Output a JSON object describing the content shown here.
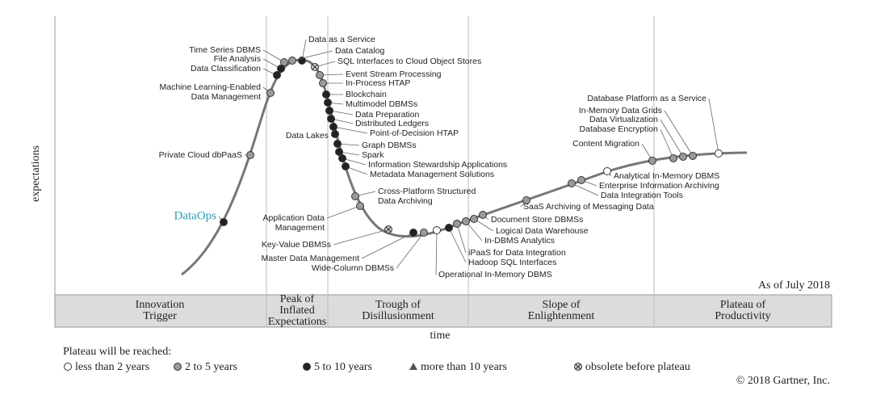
{
  "axis": {
    "y_label": "expectations",
    "x_label": "time"
  },
  "as_of": "As of July 2018",
  "phases": [
    [
      "Innovation",
      "Trigger"
    ],
    [
      "Peak of",
      "Inflated",
      "Expectations"
    ],
    [
      "Trough of",
      "Disillusionment"
    ],
    [
      "Slope of",
      "Enlightenment"
    ],
    [
      "Plateau of",
      "Productivity"
    ]
  ],
  "technologies": [
    [
      "Time Series DBMS"
    ],
    [
      "File Analysis"
    ],
    [
      "Data Classification"
    ],
    [
      "Machine Learning-Enabled",
      "Data Management"
    ],
    [
      "Private Cloud dbPaaS"
    ],
    [
      "DataOps"
    ],
    [
      "Data as a Service"
    ],
    [
      "Data Catalog"
    ],
    [
      "SQL Interfaces to Cloud Object Stores"
    ],
    [
      "Event Stream Processing"
    ],
    [
      "In-Process HTAP"
    ],
    [
      "Blockchain"
    ],
    [
      "Multimodel DBMSs"
    ],
    [
      "Data Preparation"
    ],
    [
      "Distributed Ledgers"
    ],
    [
      "Point-of-Decision HTAP"
    ],
    [
      "Data Lakes"
    ],
    [
      "Graph DBMSs"
    ],
    [
      "Spark"
    ],
    [
      "Information Stewardship Applications"
    ],
    [
      "Metadata Management Solutions"
    ],
    [
      "Cross-Platform Structured",
      "Data Archiving"
    ],
    [
      "Application Data",
      "Management"
    ],
    [
      "Key-Value DBMSs"
    ],
    [
      "Master Data Management"
    ],
    [
      "Wide-Column DBMSs"
    ],
    [
      "Operational In-Memory DBMS"
    ],
    [
      "Hadoop SQL Interfaces"
    ],
    [
      "iPaaS for Data Integration"
    ],
    [
      "In-DBMS Analytics"
    ],
    [
      "Logical Data Warehouse"
    ],
    [
      "Document Store DBMSs"
    ],
    [
      "SaaS Archiving of Messaging Data"
    ],
    [
      "Data Integration Tools"
    ],
    [
      "Enterprise Information Archiving"
    ],
    [
      "Analytical In-Memory DBMS"
    ],
    [
      "Content Migration"
    ],
    [
      "Database Encryption"
    ],
    [
      "Data Virtualization"
    ],
    [
      "In-Memory Data Grids"
    ],
    [
      "Database Platform as a Service"
    ]
  ],
  "legend": {
    "title": "Plateau will be reached:",
    "items": [
      "less than 2 years",
      "2 to 5 years",
      "5 to 10 years",
      "more than 10 years",
      "obsolete before plateau"
    ]
  },
  "copyright": "© 2018 Gartner, Inc."
}
